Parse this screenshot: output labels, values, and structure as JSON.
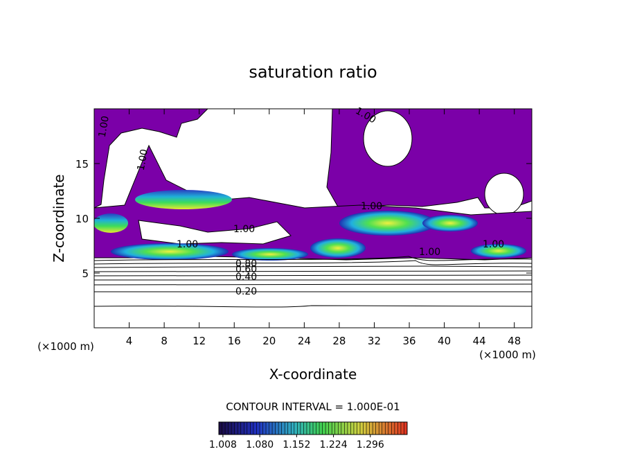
{
  "chart_data": {
    "type": "contour",
    "title": "saturation ratio",
    "x_label": "X-coordinate",
    "y_label": "Z-coordinate",
    "x_unit": "(×1000 m)",
    "y_unit": "(×1000 m)",
    "xlim": [
      0,
      50
    ],
    "ylim": [
      0,
      20
    ],
    "xticks": [
      4,
      8,
      12,
      16,
      20,
      24,
      28,
      32,
      36,
      40,
      44,
      48
    ],
    "yticks": [
      5,
      10,
      15
    ],
    "contour_interval_text": "CONTOUR INTERVAL = 1.000E-01",
    "contour_labels": [
      "1.00",
      "1.00",
      "1.00",
      "1.00",
      "1.00",
      "1.00",
      "1.00",
      "1.00",
      "0.80",
      "0.60",
      "0.40",
      "0.20"
    ],
    "colorbar": {
      "lim": [
        1.0,
        1.368
      ],
      "ticks": [
        1.008,
        {
          "value": 1.08,
          "label": "1.080"
        },
        1.152,
        1.224,
        1.296
      ]
    }
  }
}
